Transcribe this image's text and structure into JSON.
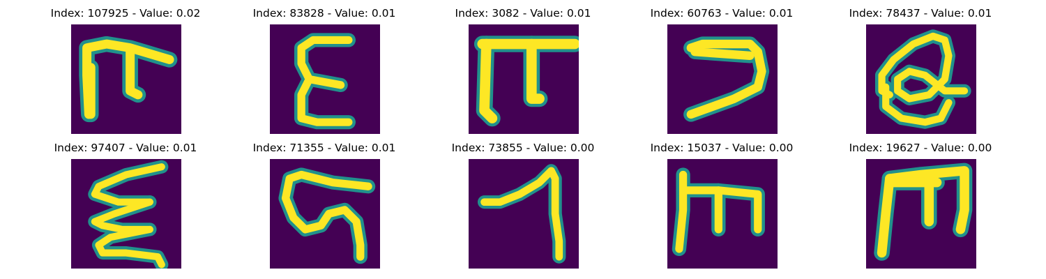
{
  "colors": {
    "background": "#440154",
    "glyph_core": "#fde725",
    "glyph_edge": "#21918c"
  },
  "panels": [
    {
      "title": "Index: 107925 - Value: 0.02",
      "glyph": "pi-hook"
    },
    {
      "title": "Index: 83828 - Value: 0.01",
      "glyph": "epsilon"
    },
    {
      "title": "Index: 3082 - Value: 0.01",
      "glyph": "pi"
    },
    {
      "title": "Index: 60763 - Value: 0.01",
      "glyph": "seven-slant"
    },
    {
      "title": "Index: 78437 - Value: 0.01",
      "glyph": "loop-q"
    },
    {
      "title": "Index: 97407 - Value: 0.01",
      "glyph": "zigzag"
    },
    {
      "title": "Index: 71355 - Value: 0.01",
      "glyph": "curl-s"
    },
    {
      "title": "Index: 73855 - Value: 0.00",
      "glyph": "seven-hook"
    },
    {
      "title": "Index: 15037 - Value: 0.00",
      "glyph": "m-shape"
    },
    {
      "title": "Index: 19627 - Value: 0.00",
      "glyph": "m-shape-2"
    }
  ]
}
